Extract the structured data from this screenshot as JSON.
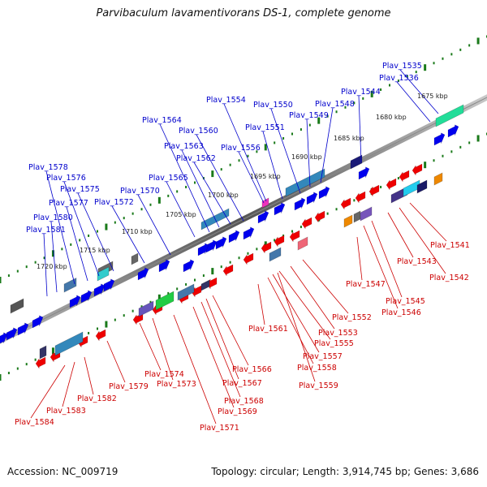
{
  "title": "Parvibaculum lavamentivorans DS-1, complete genome",
  "accession": "Accession: NC_009719",
  "summary": "Topology: circular; Length: 3,914,745 bp; Genes: 3,686",
  "colors": {
    "forward_label": "#0000cc",
    "reverse_label": "#cc0000",
    "forward_gene": "#0000ee",
    "reverse_gene": "#ee0000",
    "tick": "#1a7a1a",
    "backbone": "#777777"
  },
  "kbp_labels": [
    "1675 kbp",
    "1680 kbp",
    "1685 kbp",
    "1690 kbp",
    "1695 kbp",
    "1700 kbp",
    "1705 kbp",
    "1710 kbp",
    "1715 kbp",
    "1720 kbp"
  ],
  "forward_genes": [
    "Plav_1535",
    "Plav_1536",
    "Plav_1544",
    "Plav_1548",
    "Plav_1549",
    "Plav_1550",
    "Plav_1551",
    "Plav_1554",
    "Plav_1556",
    "Plav_1560",
    "Plav_1562",
    "Plav_1563",
    "Plav_1564",
    "Plav_1565",
    "Plav_1570",
    "Plav_1572",
    "Plav_1575",
    "Plav_1576",
    "Plav_1577",
    "Plav_1578",
    "Plav_1580",
    "Plav_1581"
  ],
  "reverse_genes": [
    "Plav_1541",
    "Plav_1542",
    "Plav_1543",
    "Plav_1545",
    "Plav_1546",
    "Plav_1547",
    "Plav_1552",
    "Plav_1553",
    "Plav_1555",
    "Plav_1557",
    "Plav_1558",
    "Plav_1559",
    "Plav_1561",
    "Plav_1566",
    "Plav_1567",
    "Plav_1568",
    "Plav_1569",
    "Plav_1571",
    "Plav_1573",
    "Plav_1574",
    "Plav_1579",
    "Plav_1582",
    "Plav_1583",
    "Plav_1584"
  ]
}
